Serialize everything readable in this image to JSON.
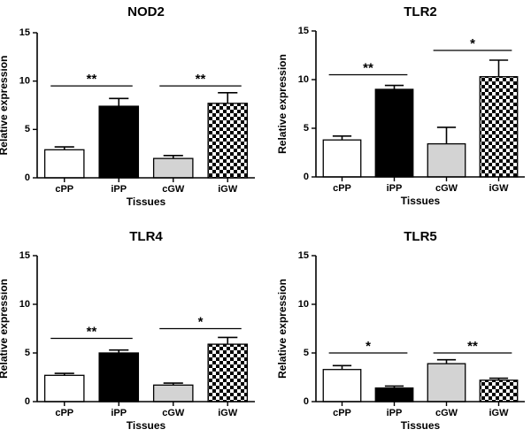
{
  "chart_data": [
    {
      "type": "bar",
      "title": "NOD2",
      "xlabel": "Tissues",
      "ylabel": "Relative expression",
      "ylim": [
        0,
        15
      ],
      "yticks": [
        0,
        5,
        10,
        15
      ],
      "categories": [
        "cPP",
        "iPP",
        "cGW",
        "iGW"
      ],
      "values": [
        2.9,
        7.4,
        2.0,
        7.7
      ],
      "errors": [
        0.3,
        0.8,
        0.3,
        1.1
      ],
      "fills": [
        "white",
        "black",
        "gray",
        "checker"
      ],
      "significance": [
        {
          "between": [
            "cPP",
            "iPP"
          ],
          "y": 9.5,
          "label": "**"
        },
        {
          "between": [
            "cGW",
            "iGW"
          ],
          "y": 9.5,
          "label": "**"
        }
      ]
    },
    {
      "type": "bar",
      "title": "TLR2",
      "xlabel": "Tissues",
      "ylabel": "Relative expression",
      "ylim": [
        0,
        15
      ],
      "yticks": [
        0,
        5,
        10,
        15
      ],
      "categories": [
        "cPP",
        "iPP",
        "cGW",
        "iGW"
      ],
      "values": [
        3.8,
        9.0,
        3.4,
        10.3
      ],
      "errors": [
        0.4,
        0.4,
        1.7,
        1.7
      ],
      "fills": [
        "white",
        "black",
        "gray",
        "checker"
      ],
      "significance": [
        {
          "between": [
            "cPP",
            "iPP"
          ],
          "y": 10.5,
          "label": "**"
        },
        {
          "between": [
            "cGW",
            "iGW"
          ],
          "y": 13.0,
          "label": "*"
        }
      ]
    },
    {
      "type": "bar",
      "title": "TLR4",
      "xlabel": "Tissues",
      "ylabel": "Relative expression",
      "ylim": [
        0,
        15
      ],
      "yticks": [
        0,
        5,
        10,
        15
      ],
      "categories": [
        "cPP",
        "iPP",
        "cGW",
        "iGW"
      ],
      "values": [
        2.7,
        5.0,
        1.7,
        5.9
      ],
      "errors": [
        0.2,
        0.3,
        0.2,
        0.7
      ],
      "fills": [
        "white",
        "black",
        "gray",
        "checker"
      ],
      "significance": [
        {
          "between": [
            "cPP",
            "iPP"
          ],
          "y": 6.5,
          "label": "**"
        },
        {
          "between": [
            "cGW",
            "iGW"
          ],
          "y": 7.5,
          "label": "*"
        }
      ]
    },
    {
      "type": "bar",
      "title": "TLR5",
      "xlabel": "Tissues",
      "ylabel": "Relative expression",
      "ylim": [
        0,
        15
      ],
      "yticks": [
        0,
        5,
        10,
        15
      ],
      "categories": [
        "cPP",
        "iPP",
        "cGW",
        "iGW"
      ],
      "values": [
        3.3,
        1.4,
        3.9,
        2.2
      ],
      "errors": [
        0.4,
        0.2,
        0.4,
        0.2
      ],
      "fills": [
        "white",
        "black",
        "gray",
        "checker"
      ],
      "significance": [
        {
          "between": [
            "cPP",
            "iPP"
          ],
          "y": 5.0,
          "label": "*"
        },
        {
          "between": [
            "cGW",
            "iGW"
          ],
          "y": 5.0,
          "label": "**"
        }
      ]
    }
  ]
}
